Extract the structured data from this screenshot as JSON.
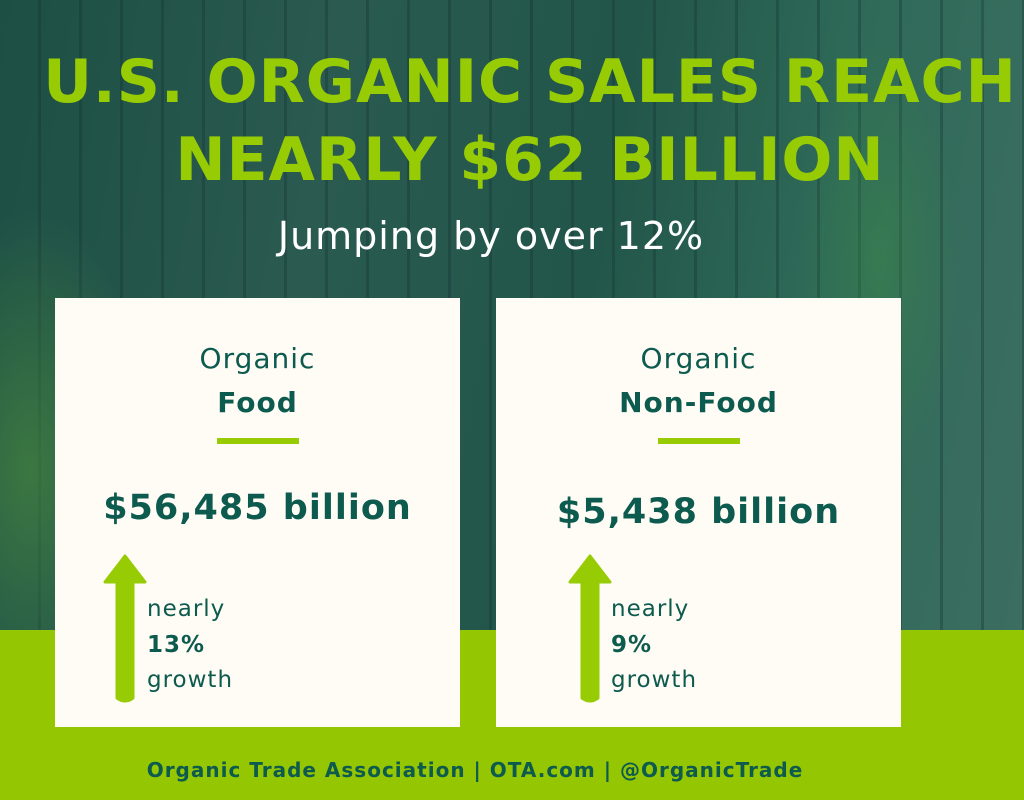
{
  "title": {
    "line1": "U.S. ORGANIC SALES REACH",
    "line2": "NEARLY $62 BILLION"
  },
  "subtitle": "Jumping by over 12%",
  "cards": [
    {
      "label_top": "Organic",
      "label_main": "Food",
      "amount": "$56,485 billion",
      "growth_prefix": "nearly",
      "growth_value": "13%",
      "growth_suffix": "growth",
      "icon": "arrow-up-icon"
    },
    {
      "label_top": "Organic",
      "label_main": "Non-Food",
      "amount": "$5,438 billion",
      "growth_prefix": "nearly",
      "growth_value": "9%",
      "growth_suffix": "growth",
      "icon": "arrow-up-icon"
    }
  ],
  "footer": "Organic Trade Association | OTA.com | @OrganicTrade",
  "colors": {
    "accent_green": "#97cc04",
    "dark_teal": "#0d5a4e",
    "card_bg": "#fefcf5",
    "band": "#95c602"
  }
}
